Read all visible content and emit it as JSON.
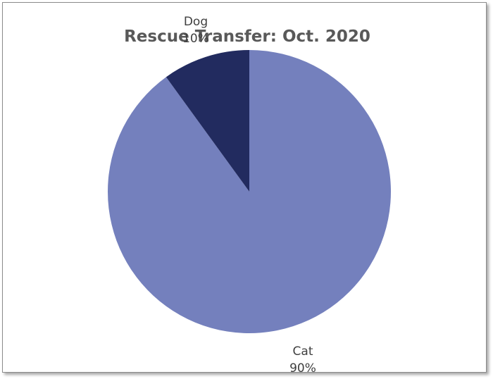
{
  "chart_data": {
    "type": "pie",
    "title": "Rescue Transfer: Oct. 2020",
    "categories": [
      "Cat",
      "Dog"
    ],
    "values": [
      90,
      10
    ],
    "value_labels": [
      "90%",
      "10%"
    ],
    "colors": [
      "#7480bd",
      "#222b5f"
    ],
    "legend": "none",
    "data_labels": "outside"
  }
}
